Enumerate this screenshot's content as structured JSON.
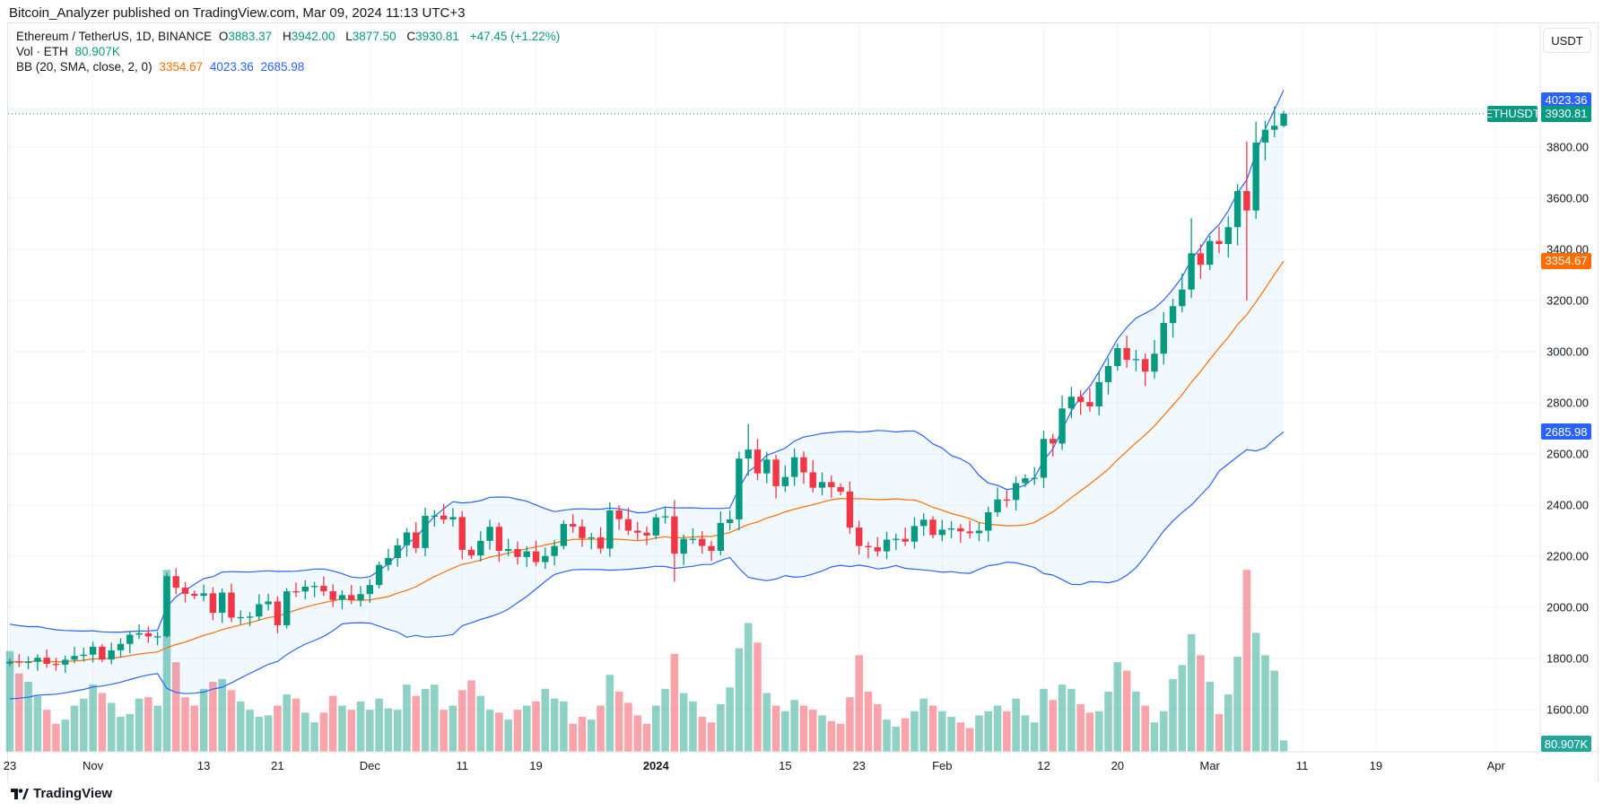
{
  "published": "Bitcoin_Analyzer published on TradingView.com, Mar 09, 2024 11:13 UTC+3",
  "legend": {
    "symbol": "Ethereum / TetherUS, 1D, BINANCE",
    "o_label": "O",
    "o": "3883.37",
    "h_label": "H",
    "h": "3942.00",
    "l_label": "L",
    "l": "3877.50",
    "c_label": "C",
    "c": "3930.81",
    "change": "+47.45 (+1.22%)",
    "vol_label": "Vol · ETH",
    "vol": "80.907K",
    "bb_label": "BB (20, SMA, close, 2, 0)",
    "bb_basis": "3354.67",
    "bb_upper": "4023.36",
    "bb_lower": "2685.98"
  },
  "currency_button": "USDT",
  "tags": {
    "bb_upper": "4023.36",
    "symbol": "ETHUSDT",
    "last_price": "3930.81",
    "bb_basis": "3354.67",
    "bb_lower": "2685.98",
    "volume": "80.907K"
  },
  "logo_text": "TradingView",
  "colors": {
    "up": "#089981",
    "down": "#f23645",
    "bb_band": "#2962ff",
    "bb_basis": "#ff6d00"
  },
  "chart_data": {
    "type": "candlestick",
    "symbol": "ETHUSDT",
    "interval": "1D",
    "start_date": "2023-10-23",
    "first_open": 1780,
    "closes": [
      1788,
      1785,
      1787,
      1803,
      1779,
      1776,
      1795,
      1810,
      1815,
      1846,
      1796,
      1832,
      1857,
      1893,
      1899,
      1886,
      1887,
      2122,
      2077,
      2053,
      2045,
      2055,
      1979,
      2058,
      1960,
      1962,
      1964,
      2012,
      2023,
      1930,
      2063,
      2062,
      2081,
      2084,
      2063,
      2029,
      2048,
      2028,
      2052,
      2087,
      2166,
      2193,
      2243,
      2293,
      2232,
      2358,
      2359,
      2344,
      2353,
      2225,
      2203,
      2260,
      2315,
      2221,
      2228,
      2197,
      2219,
      2177,
      2201,
      2240,
      2326,
      2316,
      2271,
      2274,
      2230,
      2379,
      2345,
      2300,
      2292,
      2281,
      2352,
      2356,
      2210,
      2268,
      2268,
      2240,
      2221,
      2330,
      2344,
      2582,
      2617,
      2524,
      2578,
      2474,
      2510,
      2587,
      2528,
      2468,
      2490,
      2470,
      2453,
      2312,
      2240,
      2235,
      2219,
      2265,
      2268,
      2257,
      2318,
      2343,
      2283,
      2304,
      2309,
      2297,
      2290,
      2300,
      2372,
      2422,
      2420,
      2486,
      2505,
      2507,
      2659,
      2641,
      2778,
      2824,
      2803,
      2786,
      2881,
      2944,
      3014,
      2968,
      2971,
      2922,
      2992,
      3112,
      3178,
      3243,
      3385,
      3340,
      3433,
      3421,
      3487,
      3628,
      3552,
      3818,
      3868,
      3883.37,
      3930.81
    ],
    "volumes_k": [
      720,
      560,
      500,
      400,
      300,
      200,
      230,
      330,
      380,
      480,
      420,
      350,
      250,
      270,
      380,
      390,
      330,
      1300,
      640,
      390,
      330,
      450,
      500,
      520,
      440,
      360,
      300,
      250,
      260,
      330,
      410,
      380,
      280,
      210,
      280,
      400,
      330,
      300,
      360,
      300,
      380,
      310,
      300,
      480,
      400,
      450,
      480,
      300,
      330,
      440,
      510,
      400,
      300,
      280,
      230,
      300,
      330,
      360,
      450,
      380,
      360,
      200,
      250,
      230,
      330,
      550,
      430,
      350,
      260,
      200,
      330,
      450,
      700,
      420,
      360,
      250,
      210,
      340,
      460,
      740,
      920,
      780,
      420,
      330,
      290,
      370,
      330,
      300,
      260,
      220,
      200,
      390,
      690,
      430,
      340,
      230,
      180,
      240,
      290,
      380,
      330,
      290,
      250,
      210,
      170,
      260,
      290,
      330,
      290,
      380,
      260,
      210,
      450,
      370,
      480,
      450,
      340,
      280,
      290,
      430,
      640,
      580,
      430,
      330,
      210,
      290,
      520,
      620,
      840,
      690,
      500,
      270,
      410,
      680,
      1300,
      850,
      690,
      580,
      80.907
    ],
    "wick_overrides": [
      {
        "date": "2023-11-09",
        "high": 2135,
        "low": 1880
      },
      {
        "date": "2024-01-03",
        "high": 2420,
        "low": 2100
      },
      {
        "date": "2024-01-11",
        "high": 2717,
        "low": 2515
      },
      {
        "date": "2024-02-28",
        "high": 3522,
        "low": 3210
      },
      {
        "date": "2024-03-05",
        "high": 3822,
        "low": 3200
      },
      {
        "date": "2024-03-06",
        "high": 3900,
        "low": 3520
      },
      {
        "date": "2024-03-09",
        "high": 3942,
        "low": 3877.5
      }
    ],
    "bollinger": {
      "length": 20,
      "mult": 2,
      "basis": 3354.67,
      "upper": 4023.36,
      "lower": 2685.98
    },
    "ylim": [
      1450,
      4150
    ],
    "y_ticks": [
      "1600.00",
      "1800.00",
      "2000.00",
      "2200.00",
      "2400.00",
      "2600.00",
      "2800.00",
      "3000.00",
      "3200.00",
      "3400.00",
      "3600.00",
      "3800.00"
    ],
    "x_ticks": [
      {
        "label": "23",
        "day": 0
      },
      {
        "label": "Nov",
        "day": 9
      },
      {
        "label": "13",
        "day": 21
      },
      {
        "label": "21",
        "day": 29
      },
      {
        "label": "Dec",
        "day": 39
      },
      {
        "label": "11",
        "day": 49
      },
      {
        "label": "19",
        "day": 57
      },
      {
        "label": "2024",
        "day": 70
      },
      {
        "label": "15",
        "day": 84
      },
      {
        "label": "23",
        "day": 92
      },
      {
        "label": "Feb",
        "day": 101
      },
      {
        "label": "12",
        "day": 112
      },
      {
        "label": "20",
        "day": 120
      },
      {
        "label": "Mar",
        "day": 130
      },
      {
        "label": "11",
        "day": 140
      },
      {
        "label": "19",
        "day": 148
      },
      {
        "label": "Apr",
        "day": 161
      }
    ],
    "grid": true
  }
}
